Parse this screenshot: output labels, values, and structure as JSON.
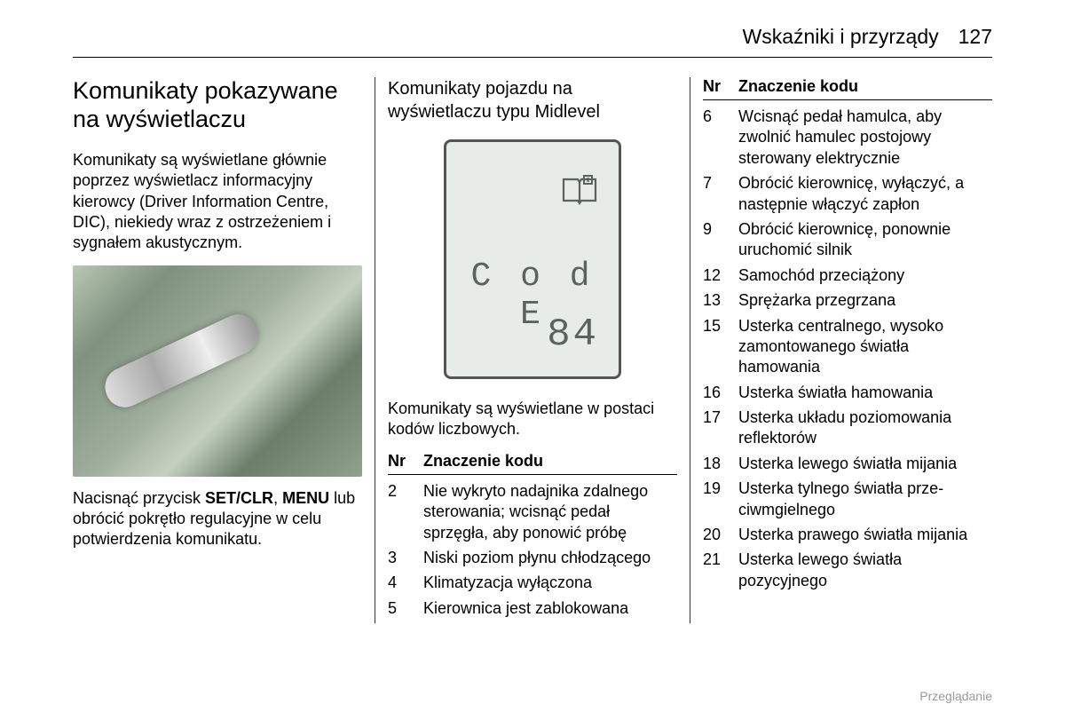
{
  "header": {
    "title": "Wskaźniki i przyrządy",
    "page": "127"
  },
  "col1": {
    "heading": "Komunikaty pokazywane na wyświetlaczu",
    "intro": "Komunikaty są wyświetlane głównie poprzez wyświetlacz informacyjny kierowcy (Driver Information Centre, DIC), niekiedy wraz z ostrzeżeniem i sygnałem akustycznym.",
    "instruction_pre": "Nacisnąć przycisk ",
    "instruction_bold1": "SET/CLR",
    "instruction_mid": ", ",
    "instruction_bold2": "MENU",
    "instruction_post": " lub obrócić pokrętło regulacyjne w celu potwierdzenia komunikatu."
  },
  "col2": {
    "heading": "Komunikaty pojazdu na wyświetlaczu typu Midlevel",
    "display_code": "C o d E",
    "display_number": "84",
    "intro": "Komunikaty są wyświetlane w postaci kodów liczbowych.",
    "th_nr": "Nr",
    "th_meaning": "Znaczenie kodu",
    "rows": [
      {
        "nr": "2",
        "m": "Nie wykryto nadajnika zdalnego sterowania; wcisnąć pedał sprzęgła, aby ponowić próbę"
      },
      {
        "nr": "3",
        "m": "Niski poziom płynu chłodzącego"
      },
      {
        "nr": "4",
        "m": "Klimatyzacja wyłączona"
      },
      {
        "nr": "5",
        "m": "Kierownica jest zablokowana"
      }
    ]
  },
  "col3": {
    "th_nr": "Nr",
    "th_meaning": "Znaczenie kodu",
    "rows": [
      {
        "nr": "6",
        "m": "Wcisnąć pedał hamulca, aby zwolnić hamulec postojowy sterowany elektrycznie"
      },
      {
        "nr": "7",
        "m": "Obrócić kierownicę, wyłączyć, a następnie włączyć zapłon"
      },
      {
        "nr": "9",
        "m": "Obrócić kierownicę, ponownie uruchomić silnik"
      },
      {
        "nr": "12",
        "m": "Samochód przeciążony"
      },
      {
        "nr": "13",
        "m": "Sprężarka przegrzana"
      },
      {
        "nr": "15",
        "m": "Usterka centralnego, wysoko zamontowanego światła hamowania"
      },
      {
        "nr": "16",
        "m": "Usterka światła hamowania"
      },
      {
        "nr": "17",
        "m": "Usterka układu poziomowania reflektorów"
      },
      {
        "nr": "18",
        "m": "Usterka lewego światła mijania"
      },
      {
        "nr": "19",
        "m": "Usterka tylnego światła prze­ciwmgielnego"
      },
      {
        "nr": "20",
        "m": "Usterka prawego światła mijania"
      },
      {
        "nr": "21",
        "m": "Usterka lewego światła pozycyjnego"
      }
    ]
  },
  "footer": "Przeglądanie"
}
